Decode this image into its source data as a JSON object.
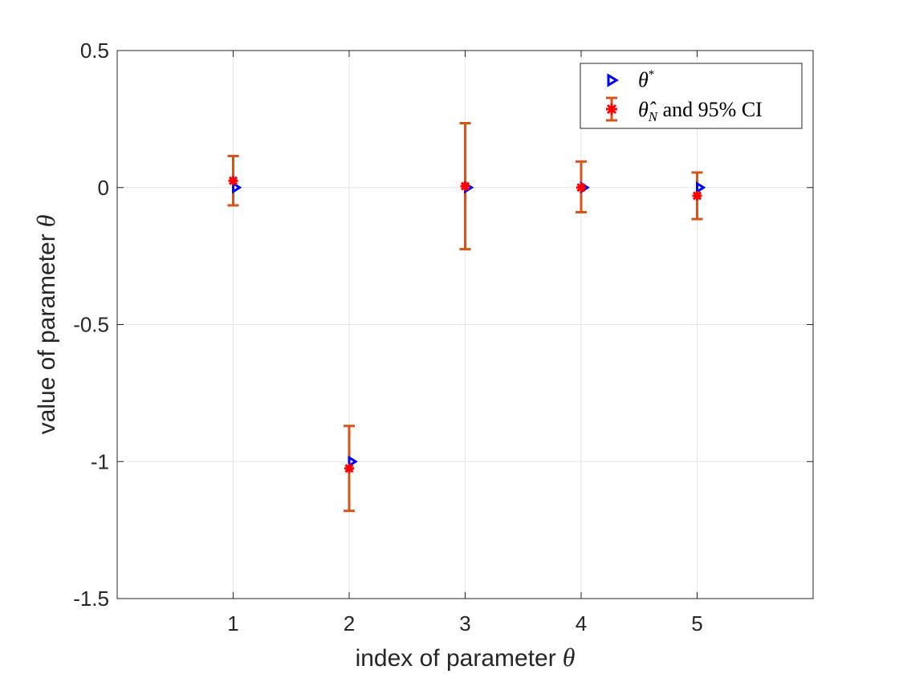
{
  "chart_data": {
    "type": "scatter",
    "title": "",
    "xlabel": "index of parameter",
    "xlabel_symbol": "θ",
    "ylabel": "value of parameter",
    "ylabel_symbol": "θ",
    "xlim": [
      0,
      6
    ],
    "ylim": [
      -1.5,
      0.5
    ],
    "xticks": [
      1,
      2,
      3,
      4,
      5
    ],
    "xtick_labels": [
      "1",
      "2",
      "3",
      "4",
      "5"
    ],
    "yticks": [
      -1.5,
      -1,
      -0.5,
      0,
      0.5
    ],
    "ytick_labels": [
      "-1.5",
      "-1",
      "-0.5",
      "0",
      "0.5"
    ],
    "grid": true,
    "legend_position": "top-right",
    "series": [
      {
        "name": "θ*",
        "legend_symbol": "θ",
        "legend_sup": "*",
        "marker": "triangle-right",
        "color": "#0000ff",
        "x": [
          1,
          2,
          3,
          4,
          5
        ],
        "y": [
          0,
          -1,
          0,
          0,
          0
        ]
      },
      {
        "name": "θ̂_N and 95% CI",
        "legend_symbol": "θ̂",
        "legend_sub": "N",
        "legend_rest": " and 95% CI",
        "marker": "asterisk",
        "color": "#ff0000",
        "errorbar_color": "#d95319",
        "x": [
          1,
          2,
          3,
          4,
          5
        ],
        "y": [
          0.025,
          -1.025,
          0.005,
          0.0,
          -0.03
        ],
        "lower": [
          -0.065,
          -1.18,
          -0.225,
          -0.09,
          -0.115
        ],
        "upper": [
          0.115,
          -0.87,
          0.235,
          0.095,
          0.055
        ]
      }
    ]
  }
}
